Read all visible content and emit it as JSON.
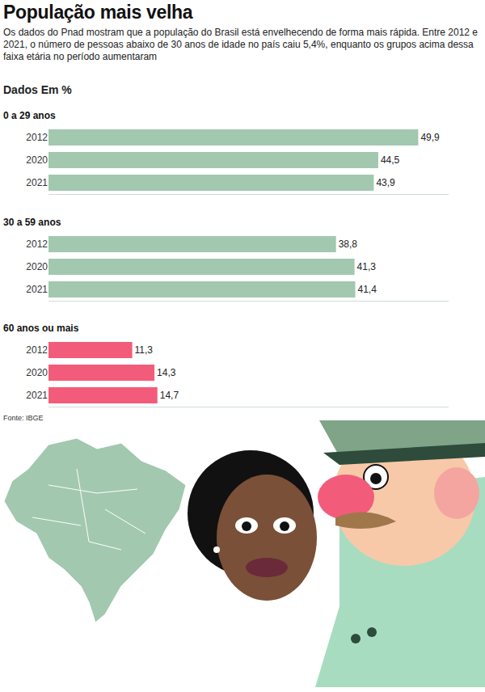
{
  "title": "População mais velha",
  "subtitle": "Os dados do Pnad mostram que a população do Brasil está envelhecendo de forma mais rápida. Entre 2012 e 2021, o número de pessoas abaixo de 30 anos de idade no país caiu 5,4%, enquanto os grupos acima dessa faixa etária no período aumentaram",
  "unit_note": "Dados Em %",
  "source": "Fonte: IBGE",
  "chart_data": [
    {
      "type": "bar",
      "title": "0 a 29 anos",
      "categories": [
        "2012",
        "2020",
        "2021"
      ],
      "values": [
        49.9,
        44.5,
        43.9
      ],
      "value_labels": [
        "49,9",
        "44,5",
        "43,9"
      ],
      "color": "#a2c8b0",
      "orientation": "horizontal",
      "data_labels": true,
      "tick_labels": "y",
      "grid": false,
      "xlim": [
        0,
        54
      ]
    },
    {
      "type": "bar",
      "title": "30 a 59 anos",
      "categories": [
        "2012",
        "2020",
        "2021"
      ],
      "values": [
        38.8,
        41.3,
        41.4
      ],
      "value_labels": [
        "38,8",
        "41,3",
        "41,4"
      ],
      "color": "#a2c8b0",
      "orientation": "horizontal",
      "data_labels": true,
      "tick_labels": "y",
      "grid": false,
      "xlim": [
        0,
        54
      ]
    },
    {
      "type": "bar",
      "title": "60 anos ou mais",
      "categories": [
        "2012",
        "2020",
        "2021"
      ],
      "values": [
        11.3,
        14.3,
        14.7
      ],
      "value_labels": [
        "11,3",
        "14,3",
        "14,7"
      ],
      "color": "#f25c7a",
      "orientation": "horizontal",
      "data_labels": true,
      "tick_labels": "y",
      "grid": false,
      "xlim": [
        0,
        54
      ]
    }
  ]
}
